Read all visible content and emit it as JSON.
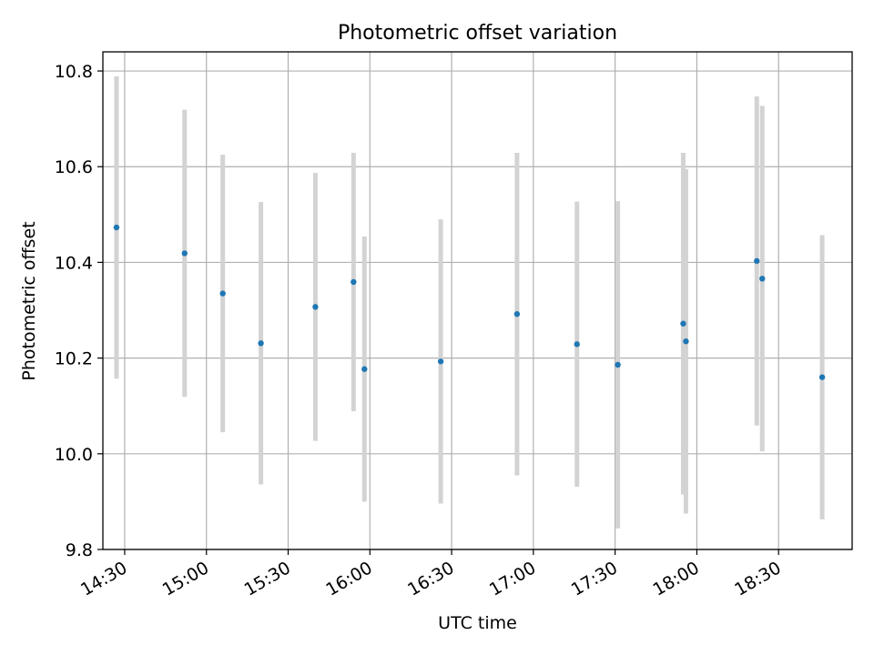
{
  "chart_data": {
    "type": "scatter",
    "title": "Photometric offset variation",
    "xlabel": "UTC time",
    "ylabel": "Photometric offset",
    "x_axis_kind": "time",
    "xlim": [
      "14:22",
      "18:57"
    ],
    "ylim": [
      9.8,
      10.84
    ],
    "x_ticks": [
      "14:30",
      "15:00",
      "15:30",
      "16:00",
      "16:30",
      "17:00",
      "17:30",
      "18:00",
      "18:30"
    ],
    "y_ticks": [
      "9.8",
      "10.0",
      "10.2",
      "10.4",
      "10.6",
      "10.8"
    ],
    "grid": true,
    "colors": {
      "point": "#1f77b4",
      "errorbar": "#d3d3d3",
      "grid": "#b0b0b0"
    },
    "points": [
      {
        "x": "14:27",
        "y": 10.473,
        "yerr": 0.316
      },
      {
        "x": "14:52",
        "y": 10.419,
        "yerr": 0.3
      },
      {
        "x": "15:06",
        "y": 10.335,
        "yerr": 0.29
      },
      {
        "x": "15:20",
        "y": 10.231,
        "yerr": 0.295
      },
      {
        "x": "15:40",
        "y": 10.307,
        "yerr": 0.28
      },
      {
        "x": "15:54",
        "y": 10.359,
        "yerr": 0.27
      },
      {
        "x": "15:58",
        "y": 10.177,
        "yerr": 0.277
      },
      {
        "x": "16:26",
        "y": 10.193,
        "yerr": 0.297
      },
      {
        "x": "16:54",
        "y": 10.292,
        "yerr": 0.337
      },
      {
        "x": "17:16",
        "y": 10.229,
        "yerr": 0.298
      },
      {
        "x": "17:31",
        "y": 10.186,
        "yerr": 0.342
      },
      {
        "x": "17:55",
        "y": 10.272,
        "yerr": 0.357
      },
      {
        "x": "17:56",
        "y": 10.235,
        "yerr": 0.36
      },
      {
        "x": "18:22",
        "y": 10.403,
        "yerr": 0.344
      },
      {
        "x": "18:24",
        "y": 10.366,
        "yerr": 0.361
      },
      {
        "x": "18:46",
        "y": 10.16,
        "yerr": 0.297
      }
    ]
  }
}
